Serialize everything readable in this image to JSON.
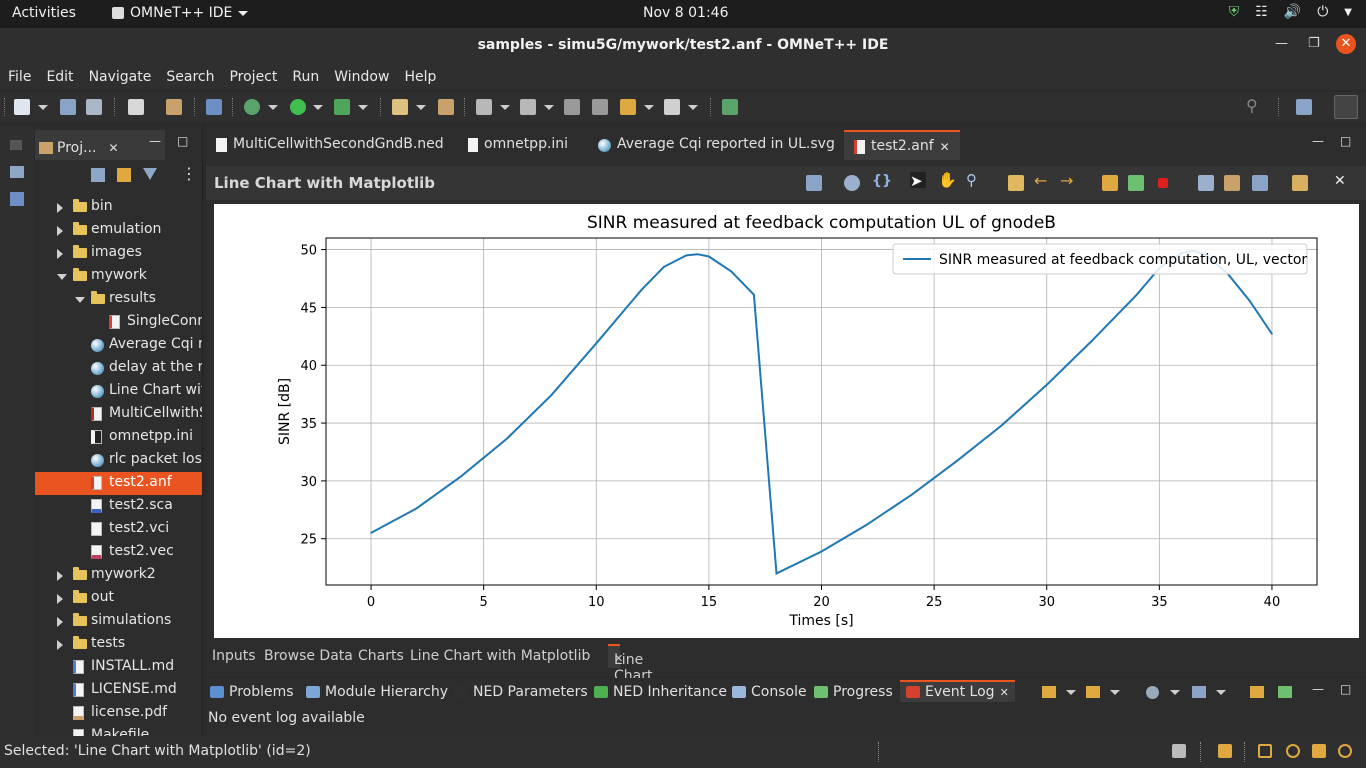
{
  "topbar": {
    "activities": "Activities",
    "app_menu": "OMNeT++ IDE",
    "clock": "Nov 8  01:46"
  },
  "window": {
    "title": "samples - simu5G/mywork/test2.anf - OMNeT++ IDE"
  },
  "menubar": [
    "File",
    "Edit",
    "Navigate",
    "Search",
    "Project",
    "Run",
    "Window",
    "Help"
  ],
  "project": {
    "tab_label": "Proj...",
    "items": [
      {
        "label": "bin",
        "kind": "folder",
        "twisty": "closed",
        "indent": 0
      },
      {
        "label": "emulation",
        "kind": "folder",
        "twisty": "closed",
        "indent": 0
      },
      {
        "label": "images",
        "kind": "folder",
        "twisty": "closed",
        "indent": 0
      },
      {
        "label": "mywork",
        "kind": "folder",
        "twisty": "open",
        "indent": 0
      },
      {
        "label": "results",
        "kind": "folder",
        "twisty": "open",
        "indent": 1
      },
      {
        "label": "SingleConn",
        "kind": "anf",
        "twisty": "",
        "indent": 2
      },
      {
        "label": "Average Cqi re",
        "kind": "globe",
        "twisty": "",
        "indent": 1
      },
      {
        "label": "delay at the rl",
        "kind": "globe",
        "twisty": "",
        "indent": 1
      },
      {
        "label": "Line Chart wit",
        "kind": "globe",
        "twisty": "",
        "indent": 1
      },
      {
        "label": "MultiCellwithS",
        "kind": "ned",
        "twisty": "",
        "indent": 1
      },
      {
        "label": "omnetpp.ini",
        "kind": "ini",
        "twisty": "",
        "indent": 1
      },
      {
        "label": "rlc packet loss",
        "kind": "globe",
        "twisty": "",
        "indent": 1
      },
      {
        "label": "test2.anf",
        "kind": "anf",
        "twisty": "",
        "indent": 1,
        "selected": true
      },
      {
        "label": "test2.sca",
        "kind": "sca",
        "twisty": "",
        "indent": 1
      },
      {
        "label": "test2.vci",
        "kind": "file",
        "twisty": "",
        "indent": 1
      },
      {
        "label": "test2.vec",
        "kind": "vec",
        "twisty": "",
        "indent": 1
      },
      {
        "label": "mywork2",
        "kind": "folder",
        "twisty": "closed",
        "indent": 0
      },
      {
        "label": "out",
        "kind": "folder",
        "twisty": "closed",
        "indent": 0
      },
      {
        "label": "simulations",
        "kind": "folder",
        "twisty": "closed",
        "indent": 0
      },
      {
        "label": "tests",
        "kind": "folder",
        "twisty": "closed",
        "indent": 0
      },
      {
        "label": "INSTALL.md",
        "kind": "md",
        "twisty": "",
        "indent": 0
      },
      {
        "label": "LICENSE.md",
        "kind": "md",
        "twisty": "",
        "indent": 0
      },
      {
        "label": "license.pdf",
        "kind": "pdf",
        "twisty": "",
        "indent": 0
      },
      {
        "label": "Makefile",
        "kind": "file",
        "twisty": "",
        "indent": 0
      }
    ]
  },
  "editor": {
    "tabs": [
      {
        "label": "MultiCellwithSecondGndB.ned",
        "active": false
      },
      {
        "label": "omnetpp.ini",
        "active": false
      },
      {
        "label": "Average Cqi reported in UL.svg",
        "active": false
      },
      {
        "label": "test2.anf",
        "active": true
      }
    ],
    "chart_header": "Line Chart with Matplotlib",
    "bottom_tabs": [
      "Inputs",
      "Browse Data",
      "Charts",
      "Line Chart with Matplotlib"
    ],
    "bottom_active_tab": "Line Chart with Matplotlib"
  },
  "chart_data": {
    "type": "line",
    "title": "SINR measured at feedback computation UL of gnodeB",
    "xlabel": "Times [s]",
    "ylabel": "SINR [dB]",
    "xlim": [
      -2,
      42
    ],
    "ylim": [
      21,
      51
    ],
    "xticks": [
      0,
      5,
      10,
      15,
      20,
      25,
      30,
      35,
      40
    ],
    "yticks": [
      25,
      30,
      35,
      40,
      45,
      50
    ],
    "grid": true,
    "legend_position": "top-right",
    "series": [
      {
        "name": "SINR measured at feedback computation, UL, vector",
        "color": "#1f77b4",
        "x": [
          0,
          2,
          4,
          6,
          8,
          10,
          12,
          13,
          14,
          14.5,
          15,
          16,
          17,
          18,
          20,
          22,
          24,
          26,
          28,
          30,
          32,
          34,
          35,
          36,
          36.5,
          37,
          38,
          39,
          40
        ],
        "y": [
          25.5,
          27.6,
          30.4,
          33.6,
          37.4,
          41.9,
          46.5,
          48.5,
          49.5,
          49.6,
          49.4,
          48.1,
          46.1,
          22.0,
          23.9,
          26.2,
          28.8,
          31.7,
          34.8,
          38.3,
          42.1,
          46.1,
          48.4,
          49.7,
          49.9,
          49.6,
          48.0,
          45.6,
          42.7
        ]
      }
    ]
  },
  "views": {
    "tabs": [
      {
        "label": "Problems",
        "color": "#5b8fd1"
      },
      {
        "label": "Module Hierarchy",
        "color": "#7da6d6"
      },
      {
        "label": "NED Parameters",
        "color": "#2f2f2f"
      },
      {
        "label": "NED Inheritance",
        "color": "#4caf50"
      },
      {
        "label": "Console",
        "color": "#9bb8dc"
      },
      {
        "label": "Progress",
        "color": "#6cc070"
      },
      {
        "label": "Event Log",
        "color": "#d6402f"
      }
    ],
    "active": "Event Log",
    "content": "No event log available"
  },
  "statusbar": {
    "text": "Selected: 'Line Chart with Matplotlib' (id=2)"
  }
}
